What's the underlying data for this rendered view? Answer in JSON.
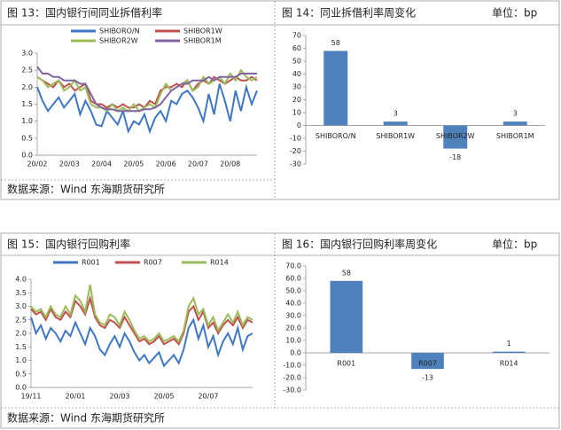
{
  "chart_data": [
    {
      "type": "line",
      "title": "图 13：国内银行间同业拆借利率",
      "source": "数据来源：Wind   东海期货研究所",
      "categories": [
        "20/02",
        null,
        null,
        null,
        null,
        null,
        "20/03",
        null,
        null,
        null,
        null,
        null,
        "20/04",
        null,
        null,
        null,
        null,
        null,
        "20/05",
        null,
        null,
        null,
        null,
        null,
        "20/06",
        null,
        null,
        null,
        null,
        null,
        "20/07",
        null,
        null,
        null,
        null,
        null,
        "20/08",
        null,
        null,
        null,
        null,
        null
      ],
      "ylim": [
        0,
        3
      ],
      "yticks": [
        {
          "value": 0,
          "label": "0.0"
        },
        0.5,
        {
          "value": 1,
          "label": "1.0"
        },
        1.5,
        {
          "value": 2,
          "label": "2.0"
        },
        2.5,
        {
          "value": 3,
          "label": "3.0"
        }
      ],
      "series": [
        {
          "name": "SHIBORO/N",
          "color": "#3f77c4",
          "values": [
            2.0,
            1.6,
            1.3,
            1.5,
            1.7,
            1.4,
            1.6,
            1.8,
            1.2,
            1.6,
            1.3,
            0.9,
            0.85,
            1.3,
            1.1,
            0.9,
            1.3,
            0.7,
            1.0,
            0.9,
            1.2,
            0.7,
            1.1,
            1.3,
            1.0,
            1.6,
            1.5,
            1.8,
            1.9,
            1.7,
            1.4,
            1.0,
            1.8,
            1.2,
            2.1,
            1.6,
            1.0,
            1.9,
            1.3,
            2.0,
            1.5,
            1.9
          ]
        },
        {
          "name": "SHIBOR1W",
          "color": "#c0504d",
          "values": [
            2.3,
            2.2,
            2.1,
            2.0,
            2.2,
            2.0,
            2.1,
            1.9,
            2.0,
            2.1,
            1.6,
            1.5,
            1.5,
            1.4,
            1.5,
            1.4,
            1.5,
            1.4,
            1.4,
            1.5,
            1.4,
            1.6,
            1.5,
            1.9,
            2.0,
            2.0,
            2.1,
            2.0,
            2.2,
            1.9,
            2.1,
            2.2,
            2.1,
            2.3,
            2.2,
            2.1,
            2.2,
            2.3,
            2.2,
            2.2,
            2.3,
            2.2
          ]
        },
        {
          "name": "SHIBOR2W",
          "color": "#9bbb59",
          "values": [
            2.3,
            2.2,
            2.0,
            2.1,
            2.2,
            1.9,
            2.0,
            2.2,
            1.9,
            2.0,
            1.5,
            1.4,
            1.4,
            1.3,
            1.5,
            1.3,
            1.4,
            1.3,
            1.5,
            1.3,
            1.4,
            1.5,
            1.4,
            1.8,
            2.1,
            1.9,
            2.0,
            2.1,
            2.2,
            1.9,
            2.0,
            2.3,
            2.1,
            2.2,
            2.3,
            2.1,
            2.4,
            2.2,
            2.5,
            2.3,
            2.2,
            2.3
          ]
        },
        {
          "name": "SHIBOR1M",
          "color": "#8064a2",
          "values": [
            2.6,
            2.4,
            2.4,
            2.3,
            2.3,
            2.2,
            2.2,
            2.2,
            2.1,
            2.1,
            1.8,
            1.5,
            1.4,
            1.35,
            1.35,
            1.3,
            1.3,
            1.3,
            1.3,
            1.3,
            1.35,
            1.35,
            1.4,
            1.5,
            1.7,
            1.9,
            2.0,
            2.1,
            2.1,
            2.2,
            2.2,
            2.2,
            2.3,
            2.2,
            2.3,
            2.3,
            2.3,
            2.3,
            2.4,
            2.4,
            2.4,
            2.4
          ]
        }
      ]
    },
    {
      "type": "bar",
      "title": "图 14：同业拆借利率周变化",
      "unit": "单位：bp",
      "color": "#4f81bd",
      "categories": [
        "SHIBORO/N",
        "SHIBOR1W",
        "SHIBOR2W",
        "SHIBOR1M"
      ],
      "values": [
        58,
        3,
        -18,
        3
      ],
      "ylim": [
        -30,
        70
      ],
      "yticks": [
        -30,
        -20,
        -10,
        0,
        10,
        20,
        30,
        40,
        50,
        60,
        70
      ]
    },
    {
      "type": "line",
      "title": "图 15：国内银行回购利率",
      "source": "数据来源：Wind   东海期货研究所",
      "categories": [
        "19/11",
        null,
        null,
        null,
        null,
        null,
        null,
        null,
        null,
        "20/01",
        null,
        null,
        null,
        null,
        null,
        null,
        null,
        null,
        "20/03",
        null,
        null,
        null,
        null,
        null,
        null,
        null,
        null,
        "20/05",
        null,
        null,
        null,
        null,
        null,
        null,
        null,
        null,
        "20/07",
        null,
        null,
        null,
        null,
        null,
        null,
        null,
        null,
        null
      ],
      "ylim": [
        0,
        4
      ],
      "yticks": [
        {
          "value": 0,
          "label": "0.0"
        },
        0.5,
        {
          "value": 1,
          "label": "1.0"
        },
        1.5,
        {
          "value": 2,
          "label": "2.0"
        },
        2.5,
        {
          "value": 3,
          "label": "3.0"
        },
        3.5,
        {
          "value": 4,
          "label": "4.0"
        }
      ],
      "series": [
        {
          "name": "R001",
          "color": "#3f77c4",
          "values": [
            2.6,
            2.0,
            2.3,
            1.8,
            2.2,
            2.0,
            1.7,
            2.1,
            1.9,
            2.4,
            2.0,
            1.6,
            2.2,
            1.9,
            1.4,
            1.2,
            1.6,
            1.9,
            1.5,
            2.0,
            1.7,
            1.3,
            1.0,
            1.2,
            0.9,
            1.1,
            1.3,
            0.8,
            1.0,
            1.2,
            0.9,
            1.4,
            2.2,
            2.5,
            1.8,
            2.3,
            1.5,
            1.9,
            1.2,
            1.7,
            2.0,
            1.6,
            2.2,
            1.4,
            1.9,
            2.0
          ]
        },
        {
          "name": "R007",
          "color": "#c0504d",
          "values": [
            2.9,
            2.7,
            2.8,
            2.5,
            2.9,
            2.6,
            2.5,
            2.8,
            2.6,
            3.2,
            3.0,
            2.7,
            3.3,
            2.6,
            2.3,
            2.2,
            2.5,
            2.4,
            2.2,
            2.6,
            2.3,
            2.0,
            1.7,
            1.8,
            1.6,
            1.7,
            1.9,
            1.6,
            1.7,
            1.8,
            1.6,
            2.0,
            2.8,
            3.0,
            2.5,
            2.8,
            2.2,
            2.4,
            2.0,
            2.3,
            2.5,
            2.3,
            2.6,
            2.2,
            2.5,
            2.4
          ]
        },
        {
          "name": "R014",
          "color": "#9bbb59",
          "values": [
            3.0,
            2.8,
            2.9,
            2.6,
            3.0,
            2.7,
            2.6,
            3.0,
            2.7,
            3.4,
            3.2,
            2.8,
            3.8,
            2.7,
            2.4,
            2.3,
            2.7,
            2.6,
            2.3,
            2.8,
            2.5,
            2.1,
            1.8,
            1.9,
            1.7,
            1.8,
            2.0,
            1.7,
            1.8,
            1.9,
            1.7,
            2.1,
            3.0,
            3.3,
            2.7,
            2.9,
            2.3,
            2.6,
            2.1,
            2.4,
            2.7,
            2.4,
            2.8,
            2.3,
            2.6,
            2.5
          ]
        }
      ]
    },
    {
      "type": "bar",
      "title": "图 16：国内银行回购利率周变化",
      "unit": "单位：bp",
      "color": "#4f81bd",
      "categories": [
        "R001",
        "R007",
        "R014"
      ],
      "values": [
        58,
        -13,
        1
      ],
      "ylim": [
        -30,
        70
      ],
      "yticks": [
        {
          "value": -30,
          "label": "-30.0"
        },
        {
          "value": -20,
          "label": "-20.0"
        },
        {
          "value": -10,
          "label": "-10.0"
        },
        {
          "value": 0,
          "label": "0.0"
        },
        {
          "value": 10,
          "label": "10.0"
        },
        {
          "value": 20,
          "label": "20.0"
        },
        {
          "value": 30,
          "label": "30.0"
        },
        {
          "value": 40,
          "label": "40.0"
        },
        {
          "value": 50,
          "label": "50.0"
        },
        {
          "value": 60,
          "label": "60.0"
        },
        {
          "value": 70,
          "label": "70.0"
        }
      ]
    }
  ]
}
